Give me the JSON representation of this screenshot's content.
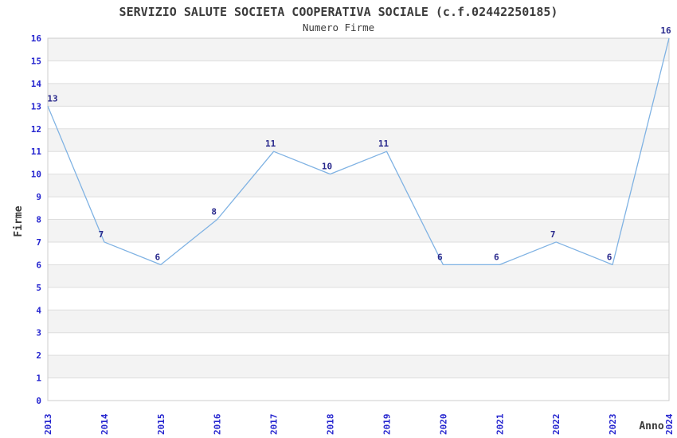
{
  "header": {
    "title": "SERVIZIO SALUTE SOCIETA COOPERATIVA SOCIALE (c.f.02442250185)",
    "subtitle": "Numero Firme"
  },
  "chart_data": {
    "type": "line",
    "title": "SERVIZIO SALUTE SOCIETA COOPERATIVA SOCIALE (c.f.02442250185)",
    "subtitle": "Numero Firme",
    "xlabel": "Anno",
    "ylabel": "Firme",
    "categories": [
      "2013",
      "2014",
      "2015",
      "2016",
      "2017",
      "2018",
      "2019",
      "2020",
      "2021",
      "2022",
      "2023",
      "2024"
    ],
    "series": [
      {
        "name": "Numero Firme",
        "values": [
          13,
          7,
          6,
          8,
          11,
          10,
          11,
          6,
          6,
          7,
          6,
          16
        ]
      }
    ],
    "ylim": [
      0,
      16
    ],
    "ytick_step": 1,
    "grid": true,
    "legend": "none",
    "point_labels": true,
    "x_tick_rotation": -90,
    "colors": {
      "line": "#7fb2e3",
      "tick_label": "#2525cf",
      "point_label": "#28288c",
      "band": "#f3f3f3",
      "gridline": "#dedede",
      "border": "#cccccc",
      "text": "#3b3b3b",
      "background": "#ffffff"
    }
  }
}
